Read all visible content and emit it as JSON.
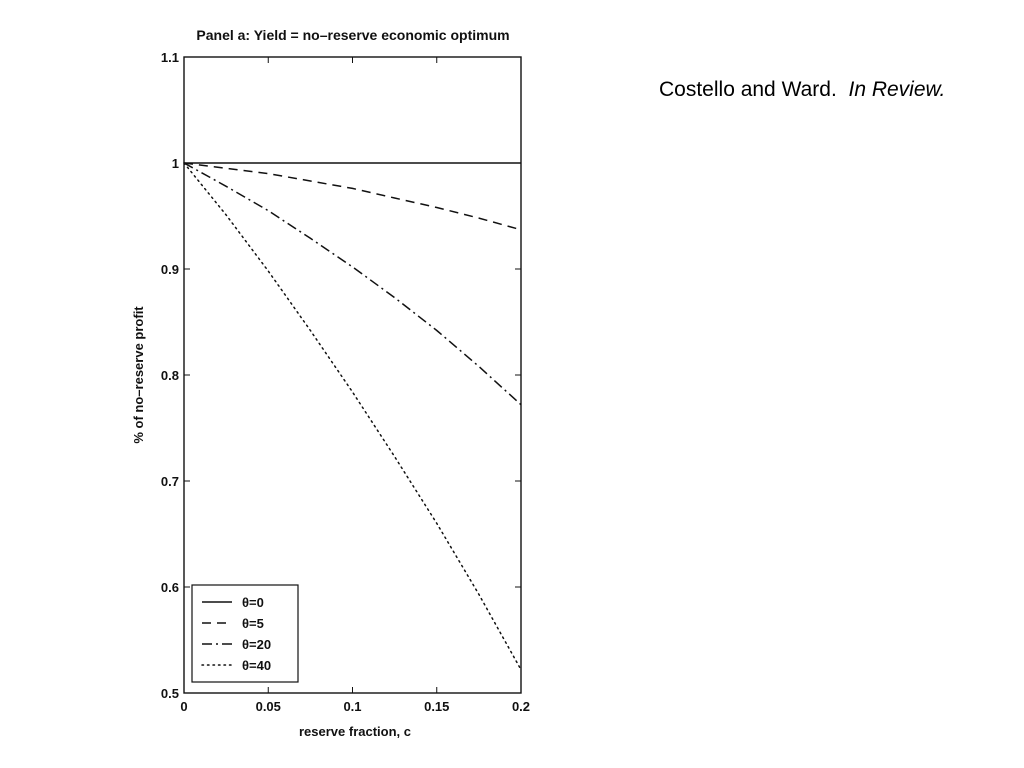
{
  "citation": {
    "authors": "Costello and Ward.",
    "status": "In Review."
  },
  "chart_data": {
    "type": "line",
    "title": "Panel a: Yield = no–reserve economic optimum",
    "xlabel": "reserve fraction, c",
    "ylabel": "% of no–reserve profit",
    "xlim": [
      0,
      0.2
    ],
    "ylim": [
      0.5,
      1.1
    ],
    "xticks": [
      0,
      0.05,
      0.1,
      0.15,
      0.2
    ],
    "xtick_labels": [
      "0",
      "0.05",
      "0.1",
      "0.15",
      "0.2"
    ],
    "yticks": [
      0.5,
      0.6,
      0.7,
      0.8,
      0.9,
      1,
      1.1
    ],
    "ytick_labels": [
      "0.5",
      "0.6",
      "0.7",
      "0.8",
      "0.9",
      "1",
      "1.1"
    ],
    "grid": false,
    "legend_position": "bottom-left",
    "x": [
      0,
      0.025,
      0.05,
      0.075,
      0.1,
      0.125,
      0.15,
      0.175,
      0.2
    ],
    "series": [
      {
        "name": "θ=0",
        "style": "solid",
        "values": [
          1.0,
          1.0,
          1.0,
          1.0,
          1.0,
          1.0,
          1.0,
          1.0,
          1.0
        ]
      },
      {
        "name": "θ=5",
        "style": "dashed",
        "values": [
          1.0,
          0.995,
          0.99,
          0.983,
          0.976,
          0.967,
          0.958,
          0.948,
          0.937
        ]
      },
      {
        "name": "θ=20",
        "style": "dashdot",
        "values": [
          1.0,
          0.978,
          0.955,
          0.929,
          0.902,
          0.873,
          0.842,
          0.808,
          0.772
        ]
      },
      {
        "name": "θ=40",
        "style": "dotted",
        "values": [
          1.0,
          0.951,
          0.898,
          0.842,
          0.784,
          0.723,
          0.66,
          0.593,
          0.522
        ]
      }
    ]
  }
}
